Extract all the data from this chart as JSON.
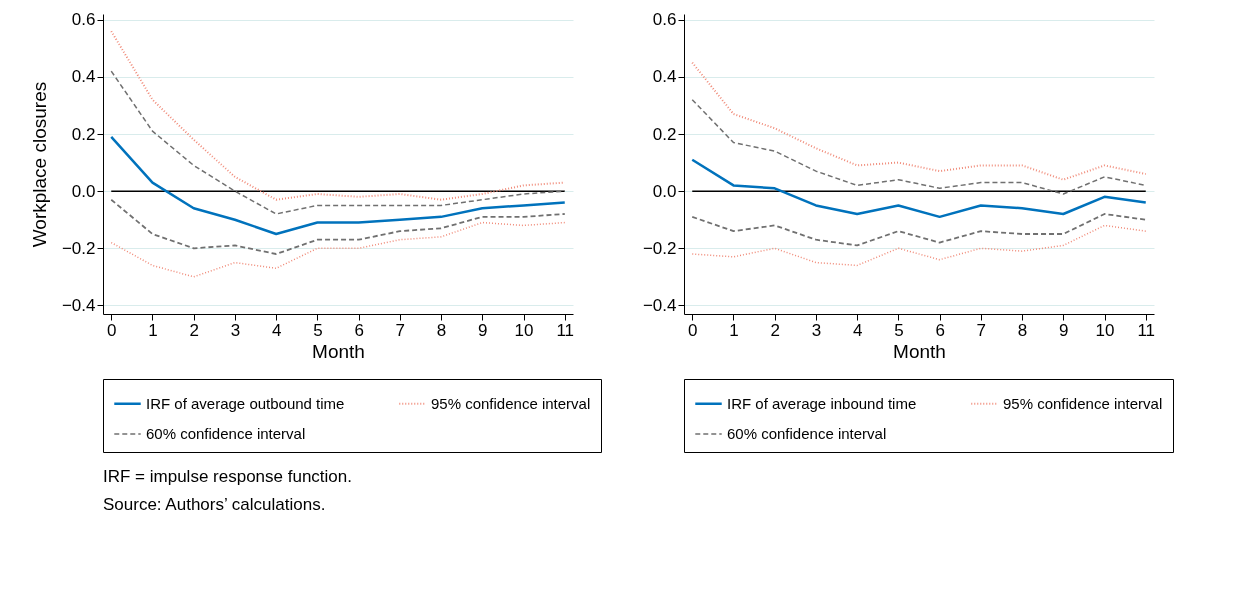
{
  "chart_data": [
    {
      "type": "line",
      "ylabel": "Workplace closures",
      "xlabel": "Month",
      "x": [
        0,
        1,
        2,
        3,
        4,
        5,
        6,
        7,
        8,
        9,
        10,
        11
      ],
      "xlim": [
        -0.2,
        11.2
      ],
      "xticks": [
        0,
        1,
        2,
        3,
        4,
        5,
        6,
        7,
        8,
        9,
        10,
        11
      ],
      "ylim": [
        -0.43,
        0.62
      ],
      "yticks": [
        -0.4,
        -0.2,
        {
          "value": 0,
          "label": "0.0"
        },
        0.2,
        0.4,
        0.6
      ],
      "grid": "y",
      "legend": "bottom",
      "marker": "none",
      "series": [
        {
          "name": "IRF of average outbound time",
          "color": "#0072bc",
          "line_style": "solid",
          "values": [
            0.19,
            0.03,
            -0.06,
            -0.1,
            -0.15,
            -0.11,
            -0.11,
            -0.1,
            -0.09,
            -0.06,
            -0.05,
            -0.04
          ]
        },
        {
          "name": "95% confidence interval",
          "color": "#f08a78",
          "line_style": "dotted",
          "values": [
            0.56,
            0.32,
            0.18,
            0.05,
            -0.03,
            -0.01,
            -0.02,
            -0.01,
            -0.03,
            -0.01,
            0.02,
            0.03
          ]
        },
        {
          "color": "#f08a78",
          "line_style": "dotted",
          "values": [
            -0.18,
            -0.26,
            -0.3,
            -0.25,
            -0.27,
            -0.2,
            -0.2,
            -0.17,
            -0.16,
            -0.11,
            -0.12,
            -0.11
          ]
        },
        {
          "name": "60% confidence interval",
          "color": "#707070",
          "line_style": "dashed",
          "values": [
            0.42,
            0.21,
            0.09,
            0.0,
            -0.08,
            -0.05,
            -0.05,
            -0.05,
            -0.05,
            -0.03,
            -0.01,
            0.0
          ]
        },
        {
          "color": "#707070",
          "line_style": "dashed",
          "values": [
            -0.03,
            -0.15,
            -0.2,
            -0.19,
            -0.22,
            -0.17,
            -0.17,
            -0.14,
            -0.13,
            -0.09,
            -0.09,
            -0.08
          ]
        }
      ],
      "ref_lines": [
        {
          "axis": "y",
          "value": 0,
          "color": "#000000"
        }
      ],
      "annotations": [
        "IRF = impulse response function.",
        "Source: Authors’ calculations."
      ]
    },
    {
      "type": "line",
      "xlabel": "Month",
      "x": [
        0,
        1,
        2,
        3,
        4,
        5,
        6,
        7,
        8,
        9,
        10,
        11
      ],
      "xlim": [
        -0.2,
        11.2
      ],
      "xticks": [
        0,
        1,
        2,
        3,
        4,
        5,
        6,
        7,
        8,
        9,
        10,
        11
      ],
      "ylim": [
        -0.43,
        0.62
      ],
      "yticks": [
        -0.4,
        -0.2,
        {
          "value": 0,
          "label": "0.0"
        },
        0.2,
        0.4,
        0.6
      ],
      "grid": "y",
      "legend": "bottom",
      "marker": "none",
      "series": [
        {
          "name": "IRF of average inbound time",
          "color": "#0072bc",
          "line_style": "solid",
          "values": [
            0.11,
            0.02,
            0.01,
            -0.05,
            -0.08,
            -0.05,
            -0.09,
            -0.05,
            -0.06,
            -0.08,
            -0.02,
            -0.04
          ]
        },
        {
          "name": "95% confidence interval",
          "color": "#f08a78",
          "line_style": "dotted",
          "values": [
            0.45,
            0.27,
            0.22,
            0.15,
            0.09,
            0.1,
            0.07,
            0.09,
            0.09,
            0.04,
            0.09,
            0.06
          ]
        },
        {
          "color": "#f08a78",
          "line_style": "dotted",
          "values": [
            -0.22,
            -0.23,
            -0.2,
            -0.25,
            -0.26,
            -0.2,
            -0.24,
            -0.2,
            -0.21,
            -0.19,
            -0.12,
            -0.14
          ]
        },
        {
          "name": "60% confidence interval",
          "color": "#707070",
          "line_style": "dashed",
          "values": [
            0.32,
            0.17,
            0.14,
            0.07,
            0.02,
            0.04,
            0.01,
            0.03,
            0.03,
            -0.01,
            0.05,
            0.02
          ]
        },
        {
          "color": "#707070",
          "line_style": "dashed",
          "values": [
            -0.09,
            -0.14,
            -0.12,
            -0.17,
            -0.19,
            -0.14,
            -0.18,
            -0.14,
            -0.15,
            -0.15,
            -0.08,
            -0.1
          ]
        }
      ],
      "ref_lines": [
        {
          "axis": "y",
          "value": 0,
          "color": "#000000"
        }
      ]
    }
  ]
}
